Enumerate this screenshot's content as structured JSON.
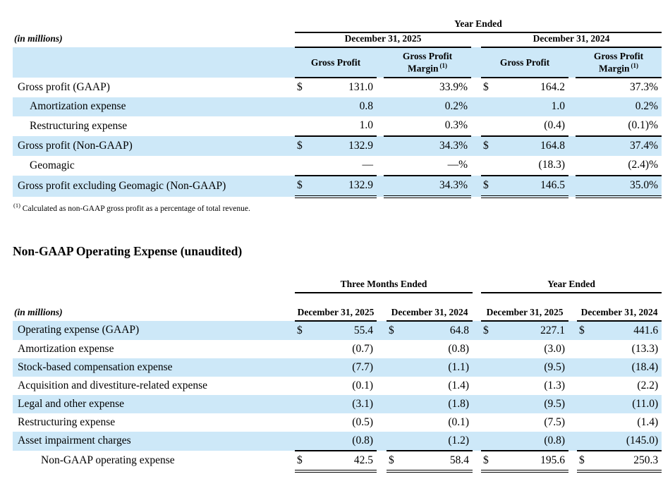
{
  "colors": {
    "stripe": "#cde8f8",
    "rule": "#000000"
  },
  "table1": {
    "top_header": "Year Ended",
    "in_millions": "(in millions)",
    "col_groups": [
      "December 31, 2025",
      "December 31, 2024"
    ],
    "col_headers": {
      "gross_profit": "Gross Profit",
      "margin": "Gross Profit Margin",
      "margin_sup": "(1)"
    },
    "rows": [
      {
        "label": "Gross profit (GAAP)",
        "indent": 0,
        "shade": false,
        "d1": "$",
        "v1": "131.0",
        "m1": "33.9%",
        "d2": "$",
        "v2": "164.2",
        "m2": "37.3%",
        "rule": ""
      },
      {
        "label": "Amortization expense",
        "indent": 1,
        "shade": true,
        "d1": "",
        "v1": "0.8",
        "m1": "0.2%",
        "d2": "",
        "v2": "1.0",
        "m2": "0.2%",
        "rule": ""
      },
      {
        "label": "Restructuring expense",
        "indent": 1,
        "shade": false,
        "d1": "",
        "v1": "1.0",
        "m1": "0.3%",
        "d2": "",
        "v2": "(0.4)",
        "m2": "(0.1)%",
        "rule": "single"
      },
      {
        "label": "Gross profit (Non-GAAP)",
        "indent": 0,
        "shade": true,
        "d1": "$",
        "v1": "132.9",
        "m1": "34.3%",
        "d2": "$",
        "v2": "164.8",
        "m2": "37.4%",
        "rule": ""
      },
      {
        "label": "Geomagic",
        "indent": 1,
        "shade": false,
        "d1": "",
        "v1": "—",
        "m1": "—%",
        "d2": "",
        "v2": "(18.3)",
        "m2": "(2.4)%",
        "rule": "single"
      },
      {
        "label": "Gross profit excluding Geomagic (Non-GAAP)",
        "indent": 0,
        "shade": true,
        "d1": "$",
        "v1": "132.9",
        "m1": "34.3%",
        "d2": "$",
        "v2": "146.5",
        "m2": "35.0%",
        "rule": "double"
      }
    ],
    "footnote_sup": "(1)",
    "footnote": "Calculated as non-GAAP gross profit as a percentage of total revenue."
  },
  "section_heading": "Non-GAAP Operating Expense (unaudited)",
  "table2": {
    "in_millions": "(in millions)",
    "col_groups": [
      "Three Months Ended",
      "Year Ended"
    ],
    "col_headers": [
      "December 31, 2025",
      "December 31, 2024",
      "December 31, 2025",
      "December 31, 2024"
    ],
    "rows": [
      {
        "label": "Operating expense (GAAP)",
        "indent": 0,
        "shade": true,
        "d1": "$",
        "v1": "55.4",
        "d2": "$",
        "v2": "64.8",
        "d3": "$",
        "v3": "227.1",
        "d4": "$",
        "v4": "441.6",
        "rule": ""
      },
      {
        "label": "Amortization expense",
        "indent": 0,
        "shade": false,
        "d1": "",
        "v1": "(0.7)",
        "d2": "",
        "v2": "(0.8)",
        "d3": "",
        "v3": "(3.0)",
        "d4": "",
        "v4": "(13.3)",
        "rule": ""
      },
      {
        "label": "Stock-based compensation expense",
        "indent": 0,
        "shade": true,
        "d1": "",
        "v1": "(7.7)",
        "d2": "",
        "v2": "(1.1)",
        "d3": "",
        "v3": "(9.5)",
        "d4": "",
        "v4": "(18.4)",
        "rule": ""
      },
      {
        "label": "Acquisition and divestiture-related expense",
        "indent": 0,
        "shade": false,
        "d1": "",
        "v1": "(0.1)",
        "d2": "",
        "v2": "(1.4)",
        "d3": "",
        "v3": "(1.3)",
        "d4": "",
        "v4": "(2.2)",
        "rule": ""
      },
      {
        "label": "Legal and other expense",
        "indent": 0,
        "shade": true,
        "d1": "",
        "v1": "(3.1)",
        "d2": "",
        "v2": "(1.8)",
        "d3": "",
        "v3": "(9.5)",
        "d4": "",
        "v4": "(11.0)",
        "rule": ""
      },
      {
        "label": "Restructuring expense",
        "indent": 0,
        "shade": false,
        "d1": "",
        "v1": "(0.5)",
        "d2": "",
        "v2": "(0.1)",
        "d3": "",
        "v3": "(7.5)",
        "d4": "",
        "v4": "(1.4)",
        "rule": ""
      },
      {
        "label": "Asset impairment charges",
        "indent": 0,
        "shade": true,
        "d1": "",
        "v1": "(0.8)",
        "d2": "",
        "v2": "(1.2)",
        "d3": "",
        "v3": "(0.8)",
        "d4": "",
        "v4": "(145.0)",
        "rule": "single"
      },
      {
        "label": "Non-GAAP operating expense",
        "indent": 2,
        "shade": false,
        "d1": "$",
        "v1": "42.5",
        "d2": "$",
        "v2": "58.4",
        "d3": "$",
        "v3": "195.6",
        "d4": "$",
        "v4": "250.3",
        "rule": "double"
      }
    ]
  }
}
